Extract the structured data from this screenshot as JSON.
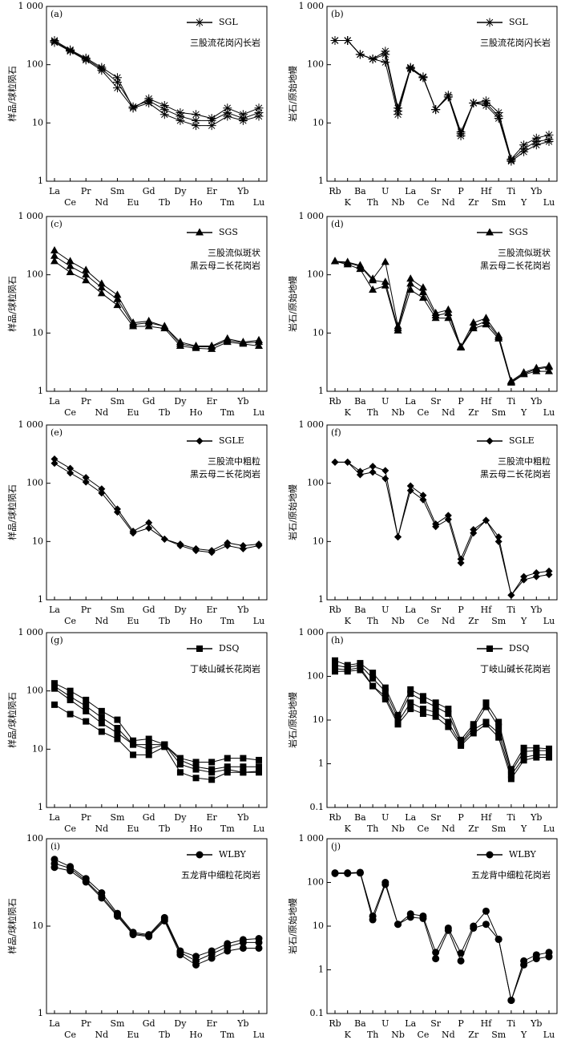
{
  "chart_data": [
    {
      "type": "line",
      "label": "(a)",
      "ylabel": "样品/球粒陨石",
      "legend": {
        "label": "SGL",
        "marker": "star"
      },
      "annotation": [
        "三股流花岗闪长岩"
      ],
      "color": "#000000",
      "log_y": true,
      "categories": [
        "La",
        "Ce",
        "Pr",
        "Nd",
        "Sm",
        "Eu",
        "Gd",
        "Tb",
        "Dy",
        "Ho",
        "Er",
        "Tm",
        "Yb",
        "Lu"
      ],
      "ylim": [
        1,
        1000
      ],
      "yticks": [
        1,
        10,
        100,
        {
          "value": 1000,
          "label": "1 000"
        }
      ],
      "series": [
        {
          "values": [
            260,
            180,
            130,
            90,
            60,
            18,
            26,
            20,
            15,
            14,
            12,
            18,
            14,
            18
          ]
        },
        {
          "values": [
            250,
            175,
            125,
            85,
            50,
            19,
            24,
            17,
            13,
            11,
            11,
            15,
            12,
            15
          ]
        },
        {
          "values": [
            240,
            170,
            120,
            80,
            40,
            18,
            22,
            14,
            11,
            9,
            9,
            13,
            11,
            13
          ]
        }
      ]
    },
    {
      "type": "line",
      "label": "(b)",
      "ylabel": "岩石/原始地幔",
      "legend": {
        "label": "SGL",
        "marker": "star"
      },
      "annotation": [
        "三股流花岗闪长岩"
      ],
      "color": "#000000",
      "log_y": true,
      "categories": [
        "Rb",
        "K",
        "Ba",
        "Th",
        "U",
        "Nb",
        "La",
        "Ce",
        "Sr",
        "Nd",
        "P",
        "Zr",
        "Hf",
        "Sm",
        "Ti",
        "Y",
        "Yb",
        "Lu"
      ],
      "ylim": [
        1,
        1000
      ],
      "yticks": [
        1,
        10,
        100,
        {
          "value": 1000,
          "label": "1 000"
        }
      ],
      "series": [
        {
          "values": [
            260,
            260,
            150,
            125,
            170,
            18,
            90,
            62,
            17,
            30,
            7,
            22,
            24,
            15,
            2.4,
            4.2,
            5.5,
            6.2
          ]
        },
        {
          "values": [
            260,
            260,
            150,
            125,
            150,
            16,
            88,
            60,
            17,
            28,
            6.5,
            22,
            22,
            13,
            2.3,
            3.6,
            4.8,
            5.2
          ]
        },
        {
          "values": [
            260,
            260,
            150,
            125,
            110,
            14,
            85,
            60,
            17,
            28,
            6,
            22,
            20,
            12,
            2.2,
            3.2,
            4.2,
            4.8
          ]
        }
      ]
    },
    {
      "type": "line",
      "label": "(c)",
      "ylabel": "样品/球粒陨石",
      "legend": {
        "label": "SGS",
        "marker": "triangle"
      },
      "annotation": [
        "三股流似斑状",
        "黑云母二长花岗岩"
      ],
      "color": "#000000",
      "log_y": true,
      "categories": [
        "La",
        "Ce",
        "Pr",
        "Nd",
        "Sm",
        "Eu",
        "Gd",
        "Tb",
        "Dy",
        "Ho",
        "Er",
        "Tm",
        "Yb",
        "Lu"
      ],
      "ylim": [
        1,
        1000
      ],
      "yticks": [
        1,
        10,
        100,
        {
          "value": 1000,
          "label": "1 000"
        }
      ],
      "series": [
        {
          "values": [
            260,
            170,
            120,
            70,
            45,
            15,
            16,
            13,
            7,
            6,
            6,
            8,
            7,
            7.5
          ]
        },
        {
          "values": [
            210,
            140,
            100,
            60,
            38,
            14,
            15,
            13,
            6.5,
            5.8,
            5.8,
            7.5,
            6.8,
            7
          ]
        },
        {
          "values": [
            170,
            110,
            80,
            48,
            30,
            13,
            13,
            12,
            6,
            5.5,
            5.3,
            7,
            6.5,
            6
          ]
        }
      ]
    },
    {
      "type": "line",
      "label": "(d)",
      "ylabel": "岩石/原始地幔",
      "legend": {
        "label": "SGS",
        "marker": "triangle"
      },
      "annotation": [
        "三股流似斑状",
        "黑云母二长花岗岩"
      ],
      "color": "#000000",
      "log_y": true,
      "categories": [
        "Rb",
        "K",
        "Ba",
        "Th",
        "U",
        "Nb",
        "La",
        "Ce",
        "Sr",
        "Nd",
        "P",
        "Zr",
        "Hf",
        "Sm",
        "Ti",
        "Y",
        "Yb",
        "Lu"
      ],
      "ylim": [
        1,
        1000
      ],
      "yticks": [
        1,
        10,
        100,
        {
          "value": 1000,
          "label": "1 000"
        }
      ],
      "series": [
        {
          "values": [
            170,
            165,
            145,
            85,
            165,
            13,
            85,
            60,
            22,
            25,
            5.8,
            15,
            18,
            9,
            1.5,
            2.1,
            2.5,
            2.7
          ]
        },
        {
          "values": [
            170,
            160,
            140,
            80,
            75,
            12,
            70,
            50,
            20,
            22,
            5.7,
            13,
            16,
            8.5,
            1.45,
            2.0,
            2.4,
            2.6
          ]
        },
        {
          "values": [
            170,
            150,
            125,
            55,
            65,
            11,
            55,
            40,
            18,
            18,
            5.6,
            12,
            14,
            8,
            1.4,
            1.95,
            2.2,
            2.2
          ]
        }
      ]
    },
    {
      "type": "line",
      "label": "(e)",
      "ylabel": "样品/球粒陨石",
      "legend": {
        "label": "SGLE",
        "marker": "diamond"
      },
      "annotation": [
        "三股流中粗粒",
        "黑云母二长花岗岩"
      ],
      "color": "#000000",
      "log_y": true,
      "categories": [
        "La",
        "Ce",
        "Pr",
        "Nd",
        "Sm",
        "Eu",
        "Gd",
        "Tb",
        "Dy",
        "Ho",
        "Er",
        "Tm",
        "Yb",
        "Lu"
      ],
      "ylim": [
        1,
        1000
      ],
      "yticks": [
        1,
        10,
        100,
        {
          "value": 1000,
          "label": "1 000"
        }
      ],
      "series": [
        {
          "values": [
            260,
            180,
            125,
            80,
            36,
            15,
            21,
            11,
            9,
            7.5,
            7,
            9.5,
            8.5,
            9
          ]
        },
        {
          "values": [
            220,
            150,
            105,
            68,
            32,
            14,
            17,
            11,
            8.5,
            7,
            6.5,
            8.5,
            7.5,
            8.5
          ]
        }
      ]
    },
    {
      "type": "line",
      "label": "(f)",
      "ylabel": "岩石/原始地幔",
      "legend": {
        "label": "SGLE",
        "marker": "diamond"
      },
      "annotation": [
        "三股流中粗粒",
        "黑云母二长花岗岩"
      ],
      "color": "#000000",
      "log_y": true,
      "categories": [
        "Rb",
        "K",
        "Ba",
        "Th",
        "U",
        "Nb",
        "La",
        "Ce",
        "Sr",
        "Nd",
        "P",
        "Zr",
        "Hf",
        "Sm",
        "Ti",
        "Y",
        "Yb",
        "Lu"
      ],
      "ylim": [
        1,
        1000
      ],
      "yticks": [
        1,
        10,
        100,
        {
          "value": 1000,
          "label": "1 000"
        }
      ],
      "series": [
        {
          "values": [
            230,
            230,
            160,
            195,
            165,
            12,
            90,
            62,
            20,
            28,
            5,
            16,
            23,
            12,
            1.2,
            2.5,
            2.9,
            3.1
          ]
        },
        {
          "values": [
            230,
            230,
            140,
            155,
            120,
            12,
            75,
            52,
            18,
            24,
            4.3,
            14,
            23,
            10,
            1.2,
            2.2,
            2.5,
            2.7
          ]
        }
      ]
    },
    {
      "type": "line",
      "label": "(g)",
      "ylabel": "样品/球粒陨石",
      "legend": {
        "label": "DSQ",
        "marker": "square"
      },
      "annotation": [
        "丁岐山碱长花岗岩"
      ],
      "color": "#000000",
      "log_y": true,
      "categories": [
        "La",
        "Ce",
        "Pr",
        "Nd",
        "Sm",
        "Eu",
        "Gd",
        "Tb",
        "Dy",
        "Ho",
        "Er",
        "Tm",
        "Yb",
        "Lu"
      ],
      "ylim": [
        1,
        1000
      ],
      "yticks": [
        1,
        10,
        100,
        {
          "value": 1000,
          "label": "1 000"
        }
      ],
      "series": [
        {
          "values": [
            135,
            100,
            70,
            45,
            32,
            14,
            15,
            12,
            7,
            6,
            6,
            7,
            7,
            6.5
          ]
        },
        {
          "values": [
            120,
            80,
            55,
            35,
            23,
            12,
            12,
            12,
            6.5,
            5,
            4.5,
            5,
            5,
            5
          ]
        },
        {
          "values": [
            110,
            70,
            45,
            28,
            19,
            12,
            10,
            12,
            5.5,
            4.5,
            4,
            4.5,
            4,
            4
          ]
        },
        {
          "values": [
            58,
            40,
            30,
            20,
            15,
            8,
            8,
            11,
            4,
            3.2,
            3,
            4,
            4,
            4.2
          ]
        }
      ]
    },
    {
      "type": "line",
      "label": "(h)",
      "ylabel": "岩石/原始地幔",
      "legend": {
        "label": "DSQ",
        "marker": "square"
      },
      "annotation": [
        "丁岐山碱长花岗岩"
      ],
      "color": "#000000",
      "log_y": true,
      "categories": [
        "Rb",
        "K",
        "Ba",
        "Th",
        "U",
        "Nb",
        "La",
        "Ce",
        "Sr",
        "Nd",
        "P",
        "Zr",
        "Hf",
        "Sm",
        "Ti",
        "Y",
        "Yb",
        "Lu"
      ],
      "ylim": [
        0.1,
        1000
      ],
      "yticks": [
        0.1,
        1,
        10,
        100,
        {
          "value": 1000,
          "label": "1 000"
        }
      ],
      "series": [
        {
          "values": [
            230,
            180,
            200,
            120,
            55,
            13,
            50,
            35,
            25,
            18,
            3.5,
            8,
            25,
            9,
            0.75,
            2.3,
            2.3,
            2.2
          ]
        },
        {
          "values": [
            180,
            160,
            180,
            90,
            45,
            11,
            40,
            28,
            20,
            14,
            3,
            7,
            20,
            7,
            0.65,
            1.9,
            2,
            2
          ]
        },
        {
          "values": [
            150,
            140,
            160,
            60,
            35,
            9,
            25,
            18,
            15,
            9,
            2.8,
            6,
            9,
            5,
            0.55,
            1.4,
            1.6,
            1.6
          ]
        },
        {
          "values": [
            130,
            130,
            140,
            60,
            30,
            8,
            18,
            14,
            12,
            7,
            2.6,
            5,
            8,
            4,
            0.45,
            1.2,
            1.4,
            1.4
          ]
        }
      ]
    },
    {
      "type": "line",
      "label": "(i)",
      "ylabel": "样品/球粒陨石",
      "legend": {
        "label": "WLBY",
        "marker": "circle"
      },
      "annotation": [
        "五龙背中细粒花岗岩"
      ],
      "color": "#000000",
      "log_y": true,
      "categories": [
        "La",
        "Ce",
        "Pr",
        "Nd",
        "Sm",
        "Eu",
        "Gd",
        "Tb",
        "Dy",
        "Ho",
        "Er",
        "Tm",
        "Yb",
        "Lu"
      ],
      "ylim": [
        1,
        100
      ],
      "yticks": [
        1,
        10,
        100
      ],
      "series": [
        {
          "values": [
            58,
            48,
            35,
            24,
            14,
            8.5,
            8,
            12.5,
            5.2,
            4.5,
            5.2,
            6.3,
            7,
            7.2
          ]
        },
        {
          "values": [
            52,
            46,
            33,
            22,
            13.5,
            8.2,
            7.8,
            12,
            5,
            4,
            4.8,
            5.8,
            6.5,
            6.5
          ]
        },
        {
          "values": [
            47,
            43,
            32,
            21,
            13,
            8,
            7.6,
            11.5,
            4.7,
            3.6,
            4.3,
            5.2,
            5.6,
            5.6
          ]
        }
      ]
    },
    {
      "type": "line",
      "label": "(j)",
      "ylabel": "岩石/原始地幔",
      "legend": {
        "label": "WLBY",
        "marker": "circle"
      },
      "annotation": [
        "五龙背中细粒花岗岩"
      ],
      "color": "#000000",
      "log_y": true,
      "categories": [
        "Rb",
        "K",
        "Ba",
        "Th",
        "U",
        "Nb",
        "La",
        "Ce",
        "Sr",
        "Nd",
        "P",
        "Zr",
        "Hf",
        "Sm",
        "Ti",
        "Y",
        "Yb",
        "Lu"
      ],
      "ylim": [
        0.1,
        1000
      ],
      "yticks": [
        0.1,
        1,
        10,
        100,
        {
          "value": 1000,
          "label": "1 000"
        }
      ],
      "series": [
        {
          "values": [
            165,
            165,
            170,
            17,
            100,
            11,
            19,
            17,
            2.5,
            9,
            2.4,
            10,
            22,
            5,
            0.2,
            1.6,
            2.2,
            2.5
          ]
        },
        {
          "values": [
            160,
            160,
            165,
            14,
            90,
            11,
            16,
            15,
            1.8,
            8,
            1.6,
            9,
            11,
            5,
            0.2,
            1.3,
            1.8,
            2
          ]
        }
      ]
    }
  ]
}
